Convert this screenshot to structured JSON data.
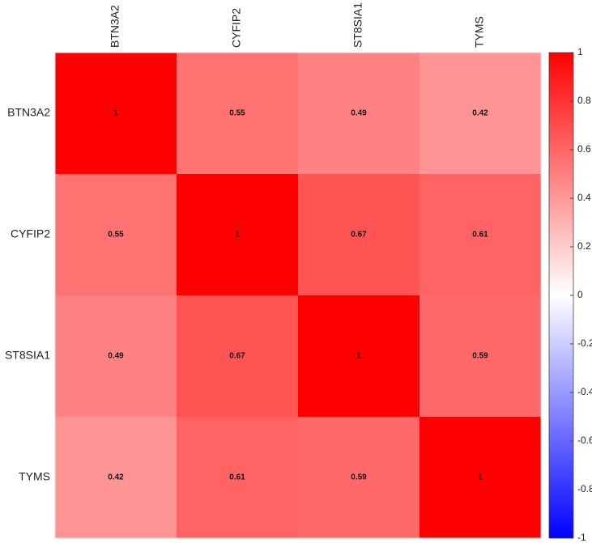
{
  "chart_data": {
    "type": "heatmap",
    "x": [
      "BTN3A2",
      "CYFIP2",
      "ST8SIA1",
      "TYMS"
    ],
    "y": [
      "BTN3A2",
      "CYFIP2",
      "ST8SIA1",
      "TYMS"
    ],
    "values": [
      [
        1,
        0.55,
        0.49,
        0.42
      ],
      [
        0.55,
        1,
        0.67,
        0.61
      ],
      [
        0.49,
        0.67,
        1,
        0.59
      ],
      [
        0.42,
        0.61,
        0.59,
        1
      ]
    ],
    "zlim": [
      -1,
      1
    ],
    "zticks": [
      -1,
      -0.8,
      -0.6,
      -0.4,
      -0.2,
      0,
      0.2,
      0.4,
      0.6,
      0.8,
      1
    ],
    "colors": [
      "#0000ff",
      "#ffffff",
      "#ff0000"
    ]
  }
}
